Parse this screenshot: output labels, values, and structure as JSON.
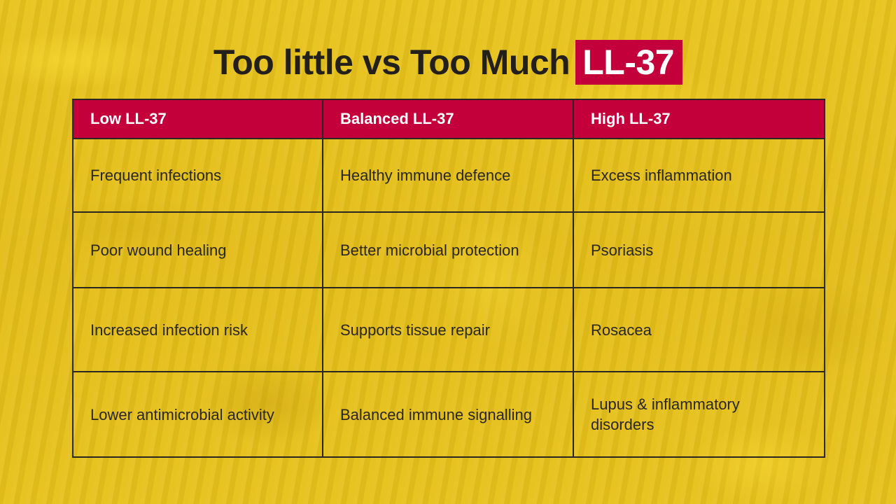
{
  "title": {
    "main": "Too little vs Too Much",
    "highlight": "LL-37"
  },
  "table": {
    "headers": [
      "Low LL-37",
      "Balanced LL-37",
      "High LL-37"
    ],
    "rows": [
      [
        "Frequent infections",
        "Healthy immune defence",
        "Excess inflammation"
      ],
      [
        "Poor wound healing",
        "Better microbial protection",
        "Psoriasis"
      ],
      [
        "Increased infection risk",
        "Supports tissue repair",
        "Rosacea"
      ],
      [
        "Lower antimicrobial activity",
        "Balanced immune signalling",
        "Lupus & inflammatory disorders"
      ]
    ]
  },
  "colors": {
    "background": "#e6c21c",
    "accent": "#c4003a",
    "text": "#231f1a"
  }
}
